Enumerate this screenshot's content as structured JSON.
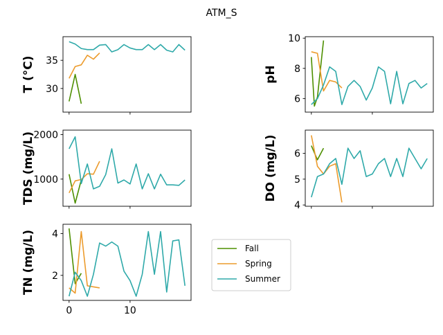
{
  "chart_data": {
    "type": "line",
    "title": "ATM_S",
    "legend": {
      "placement": "lower-middle",
      "entries": [
        {
          "name": "Fall",
          "color": "#4d8f00"
        },
        {
          "name": "Spring",
          "color": "#ec9b2c"
        },
        {
          "name": "Summer",
          "color": "#2ea9a9"
        }
      ]
    },
    "xlim": [
      -1,
      20
    ],
    "xticks": [
      0,
      10
    ],
    "panels": [
      {
        "id": "temp",
        "ylabel": "T  (°C)",
        "ylim": [
          25.8,
          39.2
        ],
        "yticks": [
          30,
          35
        ],
        "show_xticklabels": false,
        "series": [
          {
            "name": "Fall",
            "x": [
              0,
              1,
              2
            ],
            "y": [
              27.7,
              32.5,
              27.3
            ]
          },
          {
            "name": "Spring",
            "x": [
              0,
              1,
              2,
              3,
              4,
              5
            ],
            "y": [
              31.8,
              33.9,
              34.2,
              35.9,
              35.2,
              36.3
            ]
          },
          {
            "name": "Summer",
            "x": [
              0,
              1,
              2,
              3,
              4,
              5,
              6,
              7,
              8,
              9,
              10,
              11,
              12,
              13,
              14,
              15,
              16,
              17,
              18,
              19
            ],
            "y": [
              38.3,
              37.9,
              37.1,
              36.9,
              36.9,
              37.7,
              37.8,
              36.5,
              36.9,
              37.8,
              37.2,
              36.9,
              36.9,
              37.8,
              36.9,
              37.8,
              36.8,
              36.5,
              37.8,
              36.8
            ]
          }
        ]
      },
      {
        "id": "ph",
        "ylabel": "pH",
        "ylim": [
          5.1,
          10.1
        ],
        "yticks": [
          6,
          8,
          10
        ],
        "show_xticklabels": false,
        "series": [
          {
            "name": "Fall",
            "x": [
              0,
              0.5,
              1,
              2
            ],
            "y": [
              8.75,
              5.5,
              6.1,
              9.85
            ]
          },
          {
            "name": "Spring",
            "x": [
              0,
              1,
              2,
              3,
              4,
              5
            ],
            "y": [
              9.1,
              9.0,
              6.5,
              7.2,
              7.1,
              6.7
            ]
          },
          {
            "name": "Summer",
            "x": [
              0,
              1,
              2,
              3,
              4,
              5,
              6,
              7,
              8,
              9,
              10,
              11,
              12,
              13,
              14,
              15,
              16,
              17,
              18,
              19
            ],
            "y": [
              5.6,
              6.0,
              6.9,
              8.1,
              7.8,
              5.6,
              6.8,
              7.2,
              6.8,
              5.9,
              6.7,
              8.1,
              7.8,
              5.65,
              7.8,
              5.65,
              7.0,
              7.2,
              6.7,
              7.0
            ]
          }
        ]
      },
      {
        "id": "tds",
        "ylabel": "TDS (mg/L)",
        "ylim": [
          390,
          2100
        ],
        "yticks": [
          1000,
          2000
        ],
        "show_xticklabels": false,
        "series": [
          {
            "name": "Fall",
            "x": [
              0,
              1,
              2
            ],
            "y": [
              1110,
              460,
              980
            ]
          },
          {
            "name": "Spring",
            "x": [
              0,
              1,
              2,
              3,
              4,
              5
            ],
            "y": [
              690,
              960,
              990,
              1120,
              1110,
              1400
            ]
          },
          {
            "name": "Summer",
            "x": [
              0,
              1,
              2,
              3,
              4,
              5,
              6,
              7,
              8,
              9,
              10,
              11,
              12,
              13,
              14,
              15,
              16,
              17,
              18,
              19
            ],
            "y": [
              1680,
              1950,
              900,
              1340,
              780,
              840,
              1100,
              1680,
              910,
              980,
              890,
              1340,
              780,
              1120,
              780,
              1110,
              870,
              870,
              860,
              980
            ]
          }
        ]
      },
      {
        "id": "do",
        "ylabel": "DO (mg/L)",
        "ylim": [
          3.95,
          6.9
        ],
        "yticks": [
          4,
          5,
          6
        ],
        "show_xticklabels": false,
        "series": [
          {
            "name": "Fall",
            "x": [
              0,
              1,
              2
            ],
            "y": [
              6.3,
              5.75,
              6.2
            ]
          },
          {
            "name": "Spring",
            "x": [
              0,
              1,
              2,
              3,
              4,
              5
            ],
            "y": [
              6.7,
              5.5,
              5.2,
              5.5,
              5.6,
              4.1
            ]
          },
          {
            "name": "Summer",
            "x": [
              0,
              1,
              2,
              3,
              4,
              5,
              6,
              7,
              8,
              9,
              10,
              11,
              12,
              13,
              14,
              15,
              16,
              17,
              18,
              19
            ],
            "y": [
              4.3,
              5.1,
              5.2,
              5.6,
              5.8,
              4.8,
              6.2,
              5.8,
              6.1,
              5.1,
              5.2,
              5.6,
              5.8,
              5.1,
              5.8,
              5.1,
              6.2,
              5.8,
              5.4,
              5.8
            ]
          }
        ]
      },
      {
        "id": "tn",
        "ylabel": "TN (mg/L)",
        "ylim": [
          0.8,
          4.45
        ],
        "yticks": [
          2,
          4
        ],
        "show_xticklabels": true,
        "series": [
          {
            "name": "Fall",
            "x": [
              0,
              1,
              2
            ],
            "y": [
              4.25,
              1.6,
              2.1
            ]
          },
          {
            "name": "Spring",
            "x": [
              0,
              1,
              2,
              3,
              4,
              5
            ],
            "y": [
              1.4,
              1.15,
              4.1,
              1.5,
              1.45,
              1.4
            ]
          },
          {
            "name": "Summer",
            "x": [
              0,
              1,
              2,
              3,
              4,
              5,
              6,
              7,
              8,
              9,
              10,
              11,
              12,
              13,
              14,
              15,
              16,
              17,
              18,
              19
            ],
            "y": [
              1.0,
              2.15,
              1.75,
              1.0,
              2.05,
              3.55,
              3.4,
              3.6,
              3.4,
              2.2,
              1.75,
              1.0,
              2.05,
              4.1,
              2.05,
              4.1,
              1.2,
              3.65,
              3.7,
              1.5
            ]
          }
        ]
      }
    ]
  }
}
